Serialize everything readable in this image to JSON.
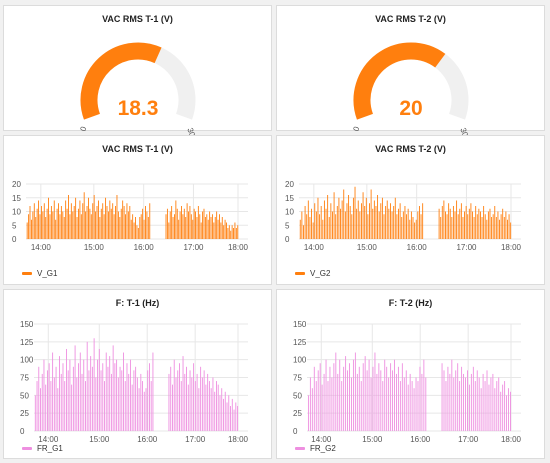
{
  "colors": {
    "orange": "#ff7f0e",
    "pink": "#ee8fe0",
    "track": "#f0f0f0",
    "grid": "#e7e7e7"
  },
  "gauges": [
    {
      "title": "VAC RMS T-1 (V)",
      "value": 18.3,
      "display": "18.3",
      "min": 0,
      "max": 30,
      "min_label": "0",
      "max_label": "30"
    },
    {
      "title": "VAC RMS T-2 (V)",
      "value": 20,
      "display": "20",
      "min": 0,
      "max": 30,
      "min_label": "0",
      "max_label": "30"
    }
  ],
  "charts": [
    {
      "title": "VAC RMS T-1 (V)",
      "legend": "V_G1",
      "y_ticks": [
        "20",
        "15",
        "10",
        "5",
        "0"
      ],
      "x_ticks": [
        "14:00",
        "15:00",
        "16:00",
        "17:00",
        "18:00"
      ]
    },
    {
      "title": "VAC RMS T-2 (V)",
      "legend": "V_G2",
      "y_ticks": [
        "20",
        "15",
        "10",
        "5",
        "0"
      ],
      "x_ticks": [
        "14:00",
        "15:00",
        "16:00",
        "17:00",
        "18:00"
      ]
    },
    {
      "title": "F: T-1 (Hz)",
      "legend": "FR_G1",
      "y_ticks": [
        "150",
        "125",
        "100",
        "75",
        "50",
        "25",
        "0"
      ],
      "x_ticks": [
        "14:00",
        "15:00",
        "16:00",
        "17:00",
        "18:00"
      ]
    },
    {
      "title": "F: T-2 (Hz)",
      "legend": "FR_G2",
      "y_ticks": [
        "150",
        "125",
        "100",
        "75",
        "50",
        "25",
        "0"
      ],
      "x_ticks": [
        "14:00",
        "15:00",
        "16:00",
        "17:00",
        "18:00"
      ]
    }
  ],
  "chart_data": [
    {
      "type": "bar",
      "title": "VAC RMS T-1 (V)",
      "xlabel": "",
      "ylabel": "",
      "ylim": [
        0,
        20
      ],
      "series": [
        {
          "name": "V_G1",
          "color": "#ff7f0e",
          "values": [
            6,
            9,
            12,
            7,
            10,
            13,
            8,
            11,
            14,
            9,
            12,
            10,
            13,
            8,
            11,
            15,
            9,
            12,
            10,
            14,
            7,
            11,
            13,
            9,
            12,
            10,
            8,
            14,
            11,
            16,
            9,
            13,
            10,
            12,
            15,
            8,
            11,
            14,
            9,
            13,
            17,
            10,
            12,
            15,
            11,
            9,
            13,
            16,
            10,
            12,
            14,
            8,
            11,
            13,
            9,
            15,
            12,
            10,
            14,
            11,
            13,
            9,
            12,
            16,
            10,
            8,
            11,
            14,
            12,
            9,
            13,
            10,
            12,
            7,
            9,
            6,
            8,
            5,
            4,
            8,
            9,
            11,
            7,
            12,
            10,
            8,
            13,
            9,
            11,
            6,
            10,
            12,
            8,
            9,
            14,
            11,
            7,
            10,
            12,
            9,
            11,
            8,
            13,
            10,
            12,
            9,
            7,
            11,
            10,
            8,
            12,
            9,
            6,
            10,
            11,
            8,
            9,
            7,
            10,
            8,
            9,
            6,
            8,
            10,
            7,
            9,
            6,
            8,
            5,
            7,
            6,
            4,
            5,
            3,
            5,
            4,
            6,
            4,
            5
          ]
        }
      ]
    },
    {
      "type": "bar",
      "title": "VAC RMS T-2 (V)",
      "xlabel": "",
      "ylabel": "",
      "ylim": [
        0,
        20
      ],
      "series": [
        {
          "name": "V_G2",
          "color": "#ff7f0e",
          "values": [
            7,
            10,
            5,
            12,
            9,
            14,
            8,
            11,
            6,
            13,
            10,
            15,
            9,
            12,
            7,
            14,
            11,
            16,
            8,
            13,
            10,
            17,
            9,
            12,
            15,
            11,
            14,
            18,
            10,
            13,
            16,
            12,
            9,
            15,
            19,
            11,
            14,
            10,
            13,
            17,
            12,
            15,
            9,
            13,
            18,
            11,
            14,
            12,
            16,
            10,
            13,
            15,
            9,
            12,
            14,
            11,
            13,
            10,
            12,
            15,
            9,
            11,
            13,
            8,
            10,
            12,
            9,
            11,
            7,
            10,
            8,
            6,
            7,
            10,
            12,
            9,
            13,
            11,
            8,
            12,
            14,
            10,
            9,
            13,
            11,
            8,
            12,
            10,
            14,
            9,
            11,
            13,
            8,
            10,
            12,
            9,
            11,
            13,
            10,
            8,
            12,
            9,
            11,
            10,
            8,
            12,
            9,
            7,
            10,
            11,
            8,
            9,
            12,
            8,
            10,
            7,
            9,
            11,
            8,
            10,
            7,
            9,
            6
          ]
        }
      ]
    },
    {
      "type": "bar",
      "title": "F: T-1 (Hz)",
      "xlabel": "",
      "ylabel": "",
      "ylim": [
        0,
        150
      ],
      "series": [
        {
          "name": "FR_G1",
          "color": "#ee8fe0",
          "values": [
            50,
            70,
            90,
            60,
            80,
            100,
            65,
            85,
            95,
            70,
            110,
            75,
            90,
            60,
            105,
            80,
            95,
            70,
            115,
            85,
            100,
            65,
            90,
            120,
            75,
            95,
            110,
            80,
            100,
            70,
            125,
            85,
            105,
            90,
            130,
            75,
            100,
            115,
            85,
            95,
            70,
            110,
            90,
            105,
            80,
            120,
            95,
            100,
            75,
            90,
            85,
            110,
            70,
            95,
            80,
            100,
            65,
            85,
            90,
            75,
            60,
            80,
            70,
            55,
            60,
            85,
            95,
            70,
            110,
            80,
            90,
            65,
            100,
            75,
            85,
            95,
            70,
            105,
            80,
            90,
            65,
            85,
            75,
            95,
            70,
            80,
            60,
            90,
            75,
            85,
            65,
            80,
            70,
            60,
            75,
            55,
            70,
            65,
            50,
            60,
            45,
            55,
            40,
            50,
            35,
            45,
            30,
            40,
            35
          ]
        }
      ]
    },
    {
      "type": "bar",
      "title": "F: T-2 (Hz)",
      "xlabel": "",
      "ylabel": "",
      "ylim": [
        0,
        150
      ],
      "series": [
        {
          "name": "FR_G2",
          "color": "#ee8fe0",
          "values": [
            50,
            75,
            60,
            90,
            70,
            85,
            95,
            65,
            80,
            100,
            70,
            90,
            75,
            95,
            110,
            80,
            100,
            70,
            90,
            105,
            85,
            95,
            75,
            100,
            110,
            80,
            90,
            70,
            95,
            105,
            85,
            100,
            75,
            90,
            110,
            80,
            95,
            85,
            70,
            100,
            90,
            75,
            95,
            85,
            100,
            80,
            90,
            70,
            95,
            75,
            85,
            65,
            80,
            70,
            60,
            75,
            70,
            90,
            80,
            100,
            75,
            95,
            85,
            70,
            90,
            80,
            100,
            75,
            85,
            95,
            70,
            90,
            80,
            75,
            85,
            65,
            80,
            90,
            70,
            85,
            75,
            60,
            80,
            70,
            85,
            65,
            75,
            80,
            60,
            70,
            75,
            55,
            65,
            70,
            50,
            60,
            55
          ]
        }
      ]
    }
  ]
}
